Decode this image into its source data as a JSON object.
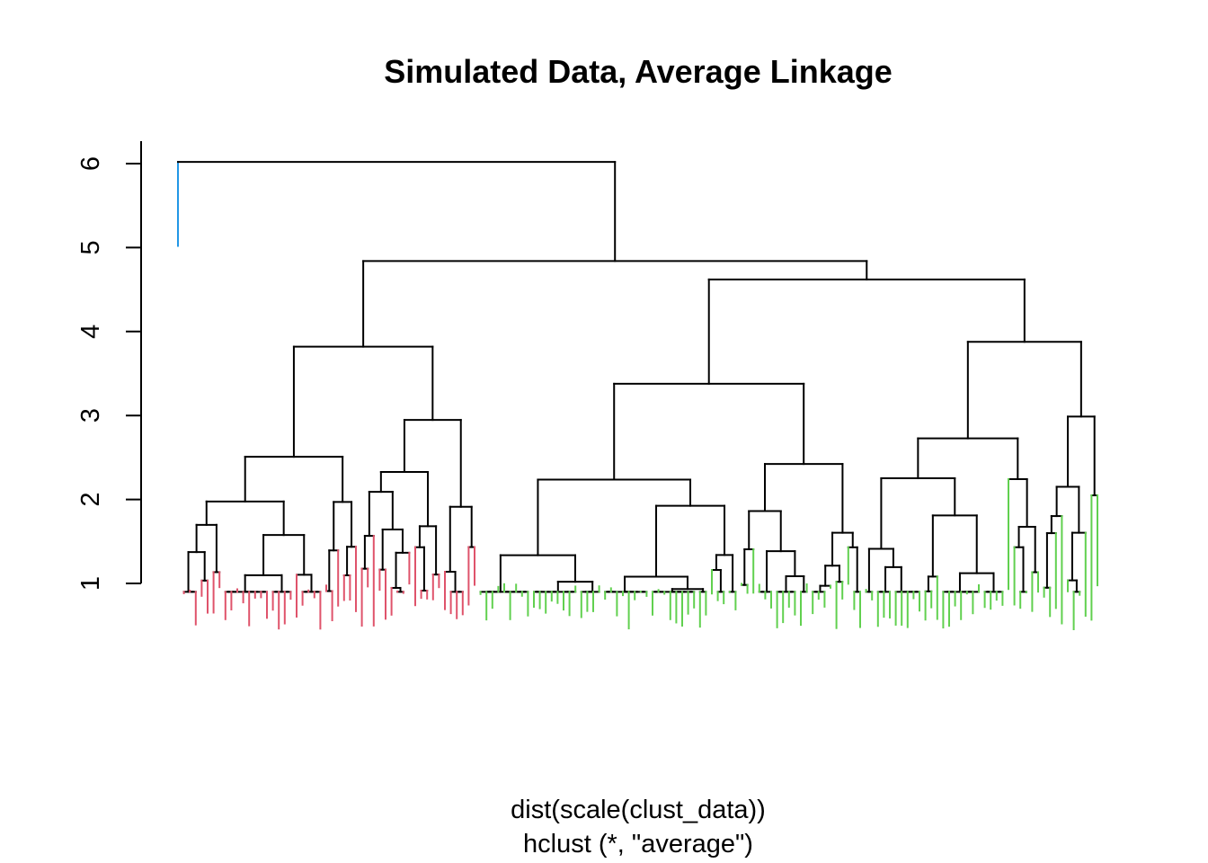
{
  "chart_data": {
    "type": "dendrogram",
    "title": "Simulated Data, Average Linkage",
    "xlabel": "dist(scale(clust_data))",
    "sublabel": "hclust (*, \"average\")",
    "ylabel": "",
    "yticks": [
      1,
      2,
      3,
      4,
      5,
      6
    ],
    "ylim": [
      0.5,
      6.3
    ],
    "cluster_colors": {
      "left_group": "#DF536B",
      "right_group": "#61D04F",
      "single_outlier": "#2297E6",
      "internal": "#000000"
    },
    "top_merges": [
      {
        "name": "root",
        "height": 6.02
      },
      {
        "name": "main-split",
        "height": 4.84
      },
      {
        "name": "right-group-top",
        "height": 4.62
      },
      {
        "name": "left-group-top",
        "height": 3.82
      }
    ],
    "outlier_leaf_height": 5.02,
    "cluster_sizes": {
      "single_outlier": 1,
      "left_group": 50,
      "right_group": 105
    }
  }
}
